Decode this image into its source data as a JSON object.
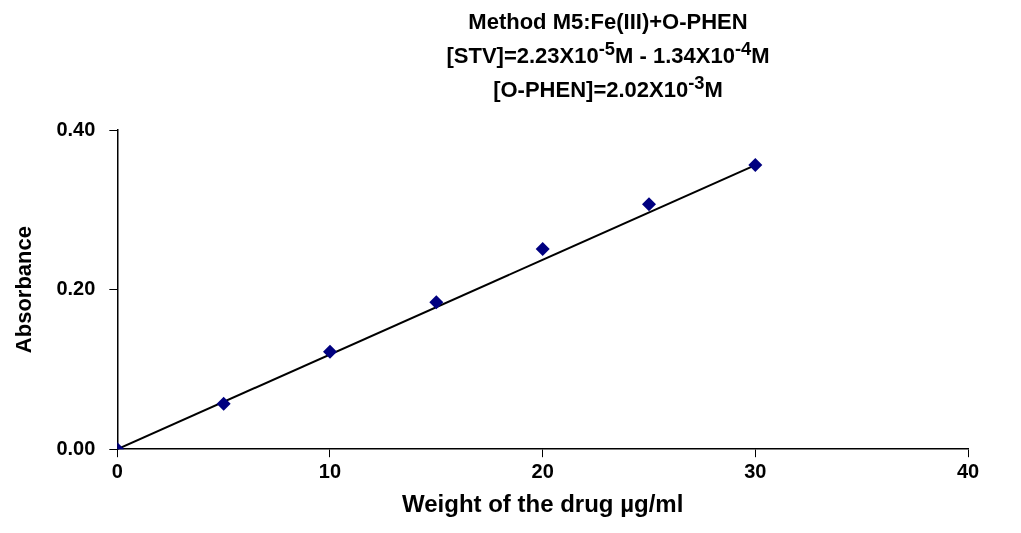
{
  "chart_data": {
    "type": "scatter",
    "title": "Method M5:Fe(III)+O-PHEN\n[STV]=2.23X10$^{-5}$M - 1.34X10$^{-4}$M\n[O-PHEN]=2.02X10$^{-3}$M",
    "xlabel": "Weight of the drug µg/ml",
    "ylabel": "Absorbance",
    "xlim": [
      0,
      40
    ],
    "xticks": [
      0,
      10,
      20,
      30,
      40
    ],
    "ylim": [
      0,
      0.4
    ],
    "yticks": [
      {
        "value": 0,
        "label": "0.00"
      },
      {
        "value": 0.2,
        "label": "0.20"
      },
      {
        "value": 0.4,
        "label": "0.40"
      }
    ],
    "grid": false,
    "legend": false,
    "marker": "diamond",
    "series": [
      {
        "color": "#000080",
        "x": [
          0,
          5,
          10,
          15,
          20,
          25,
          30
        ],
        "values": [
          0,
          0.057,
          0.122,
          0.184,
          0.251,
          0.307,
          0.356
        ]
      },
      {
        "type": "line",
        "color": "#000000",
        "x": [
          0,
          30
        ],
        "values": [
          0,
          0.356
        ],
        "marker": "none",
        "line_style": "solid"
      }
    ]
  }
}
